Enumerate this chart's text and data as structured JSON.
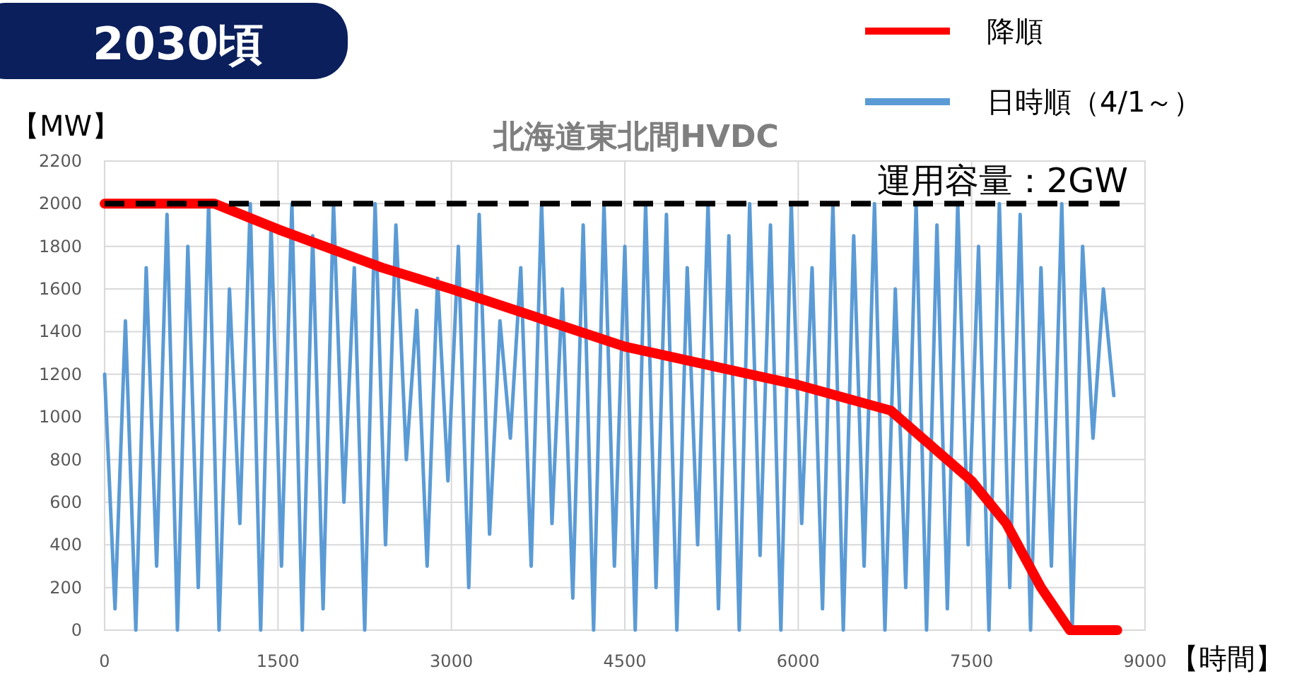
{
  "chart_data": {
    "type": "line",
    "title": "北海道東北間HVDC",
    "subtitle": "2030頃",
    "xlabel": "【時間】",
    "ylabel": "【MW】",
    "xlim": [
      0,
      9000
    ],
    "ylim": [
      0,
      2200
    ],
    "xticks": [
      0,
      1500,
      3000,
      4500,
      6000,
      7500,
      9000
    ],
    "yticks": [
      0,
      200,
      400,
      600,
      800,
      1000,
      1200,
      1400,
      1600,
      1800,
      2000,
      2200
    ],
    "grid": true,
    "legend": "top right",
    "ref_lines": [
      {
        "axis": "y",
        "value": 2000,
        "label": "運用容量：2GW",
        "color": "#000000",
        "line_style": "dashed"
      }
    ],
    "series": [
      {
        "name": "日時順（4/1～）",
        "color": "#5b9bd5",
        "x": [
          0,
          90,
          180,
          270,
          360,
          450,
          540,
          630,
          720,
          810,
          900,
          990,
          1080,
          1170,
          1260,
          1350,
          1440,
          1530,
          1620,
          1710,
          1800,
          1890,
          1980,
          2070,
          2160,
          2250,
          2340,
          2430,
          2520,
          2610,
          2700,
          2790,
          2880,
          2970,
          3060,
          3150,
          3240,
          3330,
          3420,
          3510,
          3600,
          3690,
          3780,
          3870,
          3960,
          4050,
          4140,
          4230,
          4320,
          4410,
          4500,
          4590,
          4680,
          4770,
          4860,
          4950,
          5040,
          5130,
          5220,
          5310,
          5400,
          5490,
          5580,
          5670,
          5760,
          5850,
          5940,
          6030,
          6120,
          6210,
          6300,
          6390,
          6480,
          6570,
          6660,
          6750,
          6840,
          6930,
          7020,
          7110,
          7200,
          7290,
          7380,
          7470,
          7560,
          7650,
          7740,
          7830,
          7920,
          8010,
          8100,
          8190,
          8280,
          8370,
          8460,
          8550,
          8640,
          8730
        ],
        "values": [
          1200,
          100,
          1450,
          0,
          1700,
          300,
          1950,
          0,
          1800,
          200,
          2000,
          0,
          1600,
          500,
          2000,
          0,
          1900,
          300,
          2000,
          0,
          1850,
          100,
          2000,
          600,
          1700,
          0,
          2000,
          400,
          1900,
          800,
          1500,
          300,
          1650,
          700,
          1800,
          200,
          1950,
          450,
          1450,
          900,
          1700,
          300,
          2000,
          500,
          1600,
          150,
          1900,
          0,
          2000,
          300,
          1800,
          0,
          2000,
          200,
          1950,
          0,
          1700,
          400,
          2000,
          100,
          1850,
          0,
          2000,
          350,
          1900,
          0,
          2000,
          500,
          1700,
          100,
          2000,
          0,
          1850,
          300,
          2000,
          0,
          1600,
          200,
          2000,
          0,
          1900,
          100,
          2000,
          400,
          1800,
          0,
          2000,
          200,
          1950,
          0,
          1700,
          300,
          2000,
          0,
          1800,
          900,
          1600,
          1100
        ]
      },
      {
        "name": "降順",
        "color": "#ff0000",
        "x": [
          0,
          950,
          1500,
          2400,
          3000,
          4500,
          6000,
          6800,
          7500,
          7800,
          8100,
          8350,
          8760
        ],
        "values": [
          2000,
          2000,
          1880,
          1700,
          1600,
          1330,
          1150,
          1030,
          700,
          500,
          200,
          0,
          0
        ]
      }
    ]
  }
}
